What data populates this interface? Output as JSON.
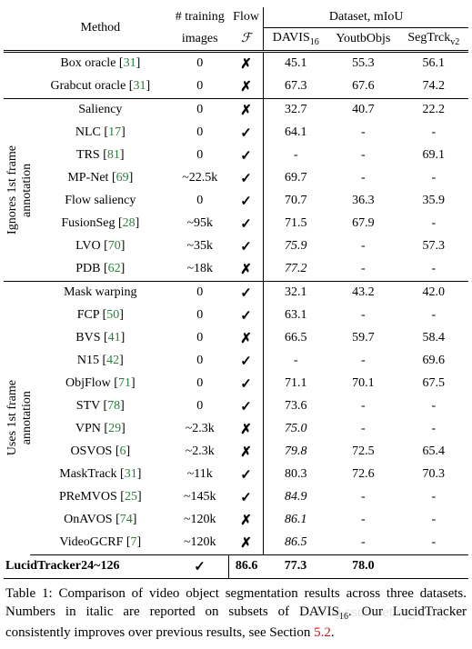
{
  "header": {
    "method": "Method",
    "training_images_l1": "# training",
    "training_images_l2": "images",
    "flow_l1": "Flow",
    "flow_l2": "ℱ",
    "dataset_miou": "Dataset, mIoU",
    "davis": "DAVIS",
    "davis_sub": "16",
    "youtb": "YoutbObjs",
    "segtrck": "SegTrck",
    "segtrck_sub": "v2"
  },
  "marks": {
    "check": "✓",
    "cross": "✗"
  },
  "group_labels": {
    "oracle": "",
    "ignores": "Ignores 1st frame\nannotation",
    "uses": "Uses 1st frame\nannotation"
  },
  "rows_oracle": [
    {
      "method": "Box oracle",
      "cite": "31",
      "train": "0",
      "flow": "cross",
      "davis": "45.1",
      "youtb": "55.3",
      "seg": "56.1"
    },
    {
      "method": "Grabcut oracle",
      "cite": "31",
      "train": "0",
      "flow": "cross",
      "davis": "67.3",
      "youtb": "67.6",
      "seg": "74.2"
    }
  ],
  "rows_ignores": [
    {
      "method": "Saliency",
      "cite": "",
      "train": "0",
      "flow": "cross",
      "davis": "32.7",
      "youtb": "40.7",
      "seg": "22.2"
    },
    {
      "method": "NLC",
      "cite": "17",
      "train": "0",
      "flow": "check",
      "davis": "64.1",
      "youtb": "-",
      "seg": "-"
    },
    {
      "method": "TRS",
      "cite": "81",
      "train": "0",
      "flow": "check",
      "davis": "-",
      "youtb": "-",
      "seg": "69.1"
    },
    {
      "method": "MP-Net",
      "cite": "69",
      "train": "~22.5k",
      "flow": "check",
      "davis": "69.7",
      "youtb": "-",
      "seg": "-"
    },
    {
      "method": "Flow saliency",
      "cite": "",
      "train": "0",
      "flow": "check",
      "davis": "70.7",
      "youtb": "36.3",
      "seg": "35.9"
    },
    {
      "method": "FusionSeg",
      "cite": "28",
      "train": "~95k",
      "flow": "check",
      "davis": "71.5",
      "youtb": "67.9",
      "seg": "-"
    },
    {
      "method": "LVO",
      "cite": "70",
      "train": "~35k",
      "flow": "check",
      "davis_i": "75.9",
      "youtb": "-",
      "seg": "57.3"
    },
    {
      "method": "PDB",
      "cite": "62",
      "train": "~18k",
      "flow": "cross",
      "davis_i": "77.2",
      "youtb": "-",
      "seg": "-"
    }
  ],
  "rows_uses": [
    {
      "method": "Mask warping",
      "cite": "",
      "train": "0",
      "flow": "check",
      "davis": "32.1",
      "youtb": "43.2",
      "seg": "42.0"
    },
    {
      "method": "FCP",
      "cite": "50",
      "train": "0",
      "flow": "check",
      "davis": "63.1",
      "youtb": "-",
      "seg": "-"
    },
    {
      "method": "BVS",
      "cite": "41",
      "train": "0",
      "flow": "cross",
      "davis": "66.5",
      "youtb": "59.7",
      "seg": "58.4"
    },
    {
      "method": "N15",
      "cite": "42",
      "train": "0",
      "flow": "check",
      "davis": "-",
      "youtb": "-",
      "seg": "69.6"
    },
    {
      "method": "ObjFlow",
      "cite": "71",
      "train": "0",
      "flow": "check",
      "davis": "71.1",
      "youtb": "70.1",
      "seg": "67.5"
    },
    {
      "method": "STV",
      "cite": "78",
      "train": "0",
      "flow": "check",
      "davis": "73.6",
      "youtb": "-",
      "seg": "-"
    },
    {
      "method": "VPN",
      "cite": "29",
      "train": "~2.3k",
      "flow": "cross",
      "davis_i": "75.0",
      "youtb": "-",
      "seg": "-"
    },
    {
      "method": "OSVOS",
      "cite": "6",
      "train": "~2.3k",
      "flow": "cross",
      "davis_i": "79.8",
      "youtb": "72.5",
      "seg": "65.4"
    },
    {
      "method": "MaskTrack",
      "cite": "31",
      "train": "~11k",
      "flow": "check",
      "davis": "80.3",
      "youtb": "72.6",
      "seg": "70.3"
    },
    {
      "method": "PReMVOS",
      "cite": "25",
      "train": "~145k",
      "flow": "check",
      "davis_i": "84.9",
      "youtb": "-",
      "seg": "-"
    },
    {
      "method": "OnAVOS",
      "cite": "74",
      "train": "~120k",
      "flow": "cross",
      "davis_i": "86.1",
      "youtb": "-",
      "seg": "-"
    },
    {
      "method": "VideoGCRF",
      "cite": "7",
      "train": "~120k",
      "flow": "cross",
      "davis_i": "86.5",
      "youtb": "-",
      "seg": "-"
    }
  ],
  "row_final": {
    "method": "LucidTracker",
    "train": "24~126",
    "flow": "check",
    "davis": "86.6",
    "youtb": "77.3",
    "seg": "78.0"
  },
  "caption": {
    "table_num": "Table 1: ",
    "text1": "Comparison of video object segmentation results across three datasets. Numbers in italic are reported on subsets of DAVIS",
    "text1_sub": "16",
    "text2": ". Our LucidTracker consistently improves over previous results, see Section ",
    "ref": "5.2",
    "text3": "."
  },
  "watermark": "s://blog.csdn.net/m_buddy",
  "colors": {
    "cite": "#28813b",
    "ref": "#c51819",
    "text": "#000000",
    "bg": "#ffffff"
  }
}
